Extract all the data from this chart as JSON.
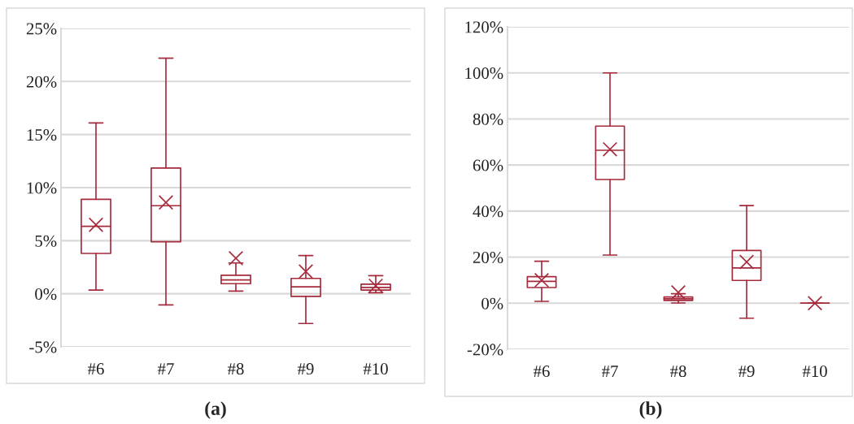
{
  "chart_data": [
    {
      "type": "box",
      "categories": [
        "#6",
        "#7",
        "#8",
        "#9",
        "#10"
      ],
      "color": "#a52a3c",
      "boxes": [
        {
          "low": 0.35,
          "q1": 3.8,
          "median": 6.35,
          "q3": 8.9,
          "high": 16.1,
          "mean": 6.5
        },
        {
          "low": -1.05,
          "q1": 4.9,
          "median": 8.3,
          "q3": 11.85,
          "high": 22.2,
          "mean": 8.6
        },
        {
          "low": 0.25,
          "q1": 0.95,
          "median": 1.3,
          "q3": 1.75,
          "high": 2.9,
          "mean": 3.35
        },
        {
          "low": -2.8,
          "q1": -0.25,
          "median": 0.65,
          "q3": 1.45,
          "high": 3.6,
          "mean": 2.1
        },
        {
          "low": 0.1,
          "q1": 0.35,
          "median": 0.6,
          "q3": 0.9,
          "high": 1.7,
          "mean": 0.75
        }
      ],
      "ylim": [
        -5,
        25
      ],
      "yticks": [
        {
          "value": -5,
          "label": "-5%"
        },
        {
          "value": 0,
          "label": "0%"
        },
        {
          "value": 5,
          "label": "5%"
        },
        {
          "value": 10,
          "label": "10%"
        },
        {
          "value": 15,
          "label": "15%"
        },
        {
          "value": 20,
          "label": "20%"
        },
        {
          "value": 25,
          "label": "25%"
        }
      ],
      "grid": "y",
      "marker": "cross",
      "annotations": [
        "(a)"
      ]
    },
    {
      "type": "box",
      "categories": [
        "#6",
        "#7",
        "#8",
        "#9",
        "#10"
      ],
      "color": "#a52a3c",
      "boxes": [
        {
          "low": 0.8,
          "q1": 6.8,
          "median": 9.5,
          "q3": 11.5,
          "high": 18.2,
          "mean": 10
        },
        {
          "low": 20.9,
          "q1": 53.7,
          "median": 66.4,
          "q3": 76.9,
          "high": 100,
          "mean": 66.8
        },
        {
          "low": 0.1,
          "q1": 1.2,
          "median": 1.9,
          "q3": 2.7,
          "high": 4.1,
          "mean": 4.7
        },
        {
          "low": -6.5,
          "q1": 9.9,
          "median": 15.3,
          "q3": 22.9,
          "high": 42.4,
          "mean": 17.9
        },
        {
          "low": 0,
          "q1": 0,
          "median": 0,
          "q3": 0,
          "high": 0,
          "mean": 0
        }
      ],
      "ylim": [
        -20,
        120
      ],
      "yticks": [
        {
          "value": -20,
          "label": "-20%"
        },
        {
          "value": 0,
          "label": "0%"
        },
        {
          "value": 20,
          "label": "20%"
        },
        {
          "value": 40,
          "label": "40%"
        },
        {
          "value": 60,
          "label": "60%"
        },
        {
          "value": 80,
          "label": "80%"
        },
        {
          "value": 100,
          "label": "100%"
        },
        {
          "value": 120,
          "label": "120%"
        }
      ],
      "grid": "y",
      "marker": "cross",
      "annotations": [
        "(b)"
      ]
    }
  ]
}
